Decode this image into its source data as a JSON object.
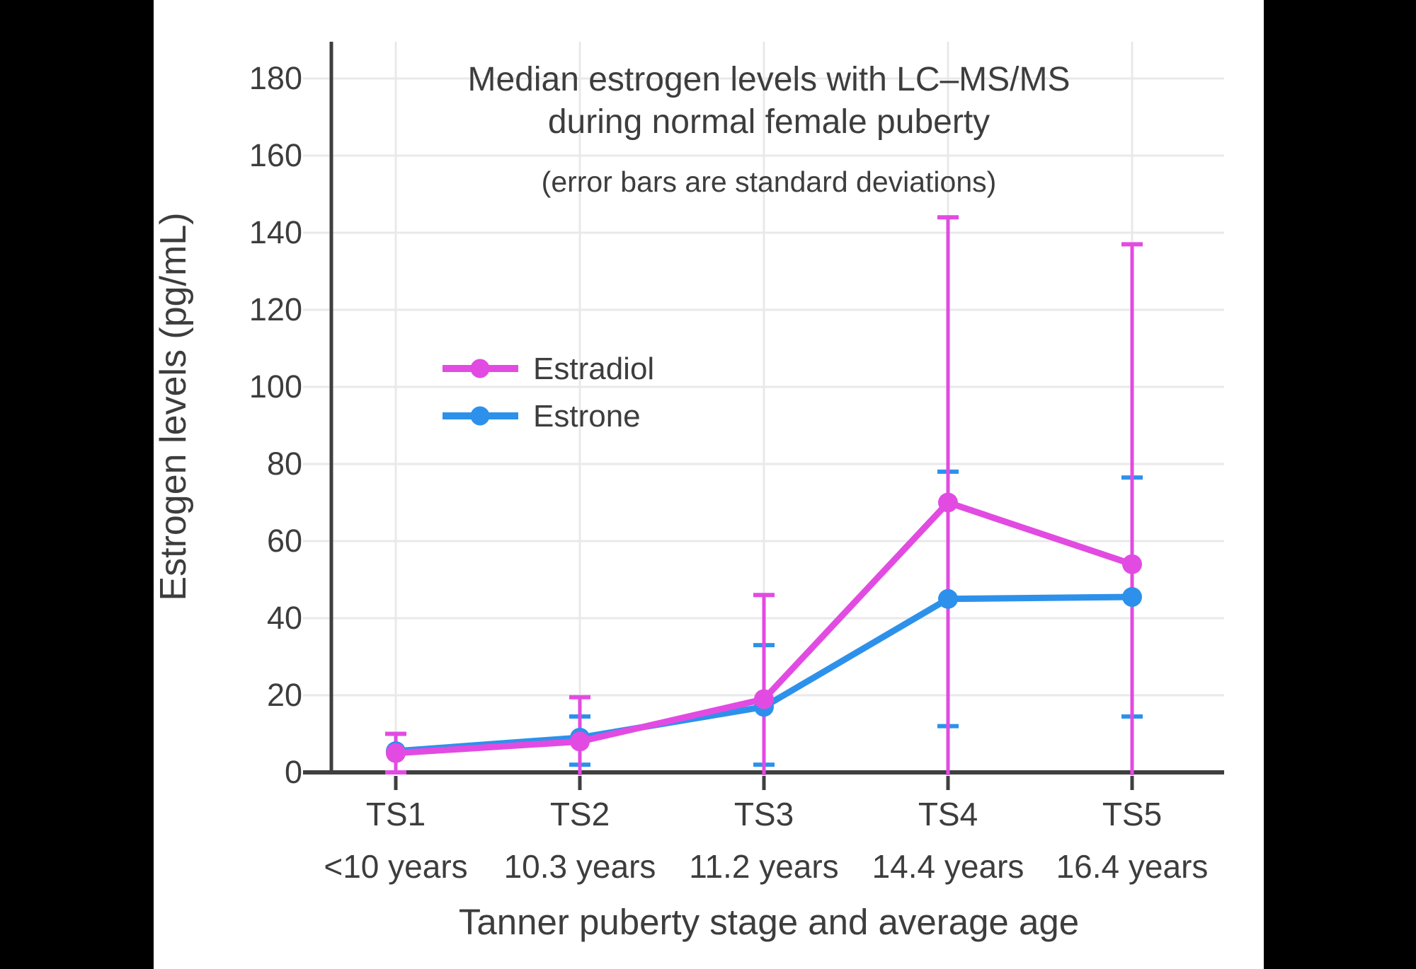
{
  "colors": {
    "background": "#000000",
    "panel": "#ffffff",
    "text": "#3d3d3d",
    "axis": "#3f3f3f",
    "grid": "#e9e9e9",
    "estradiol": "#e24be2",
    "estrone": "#2d91eb"
  },
  "title": {
    "line1": "Median estrogen levels with LC–MS/MS",
    "line2": "during normal female puberty",
    "subtitle": "(error bars are standard deviations)"
  },
  "axes": {
    "y_title": "Estrogen levels (pg/mL)",
    "x_title": "Tanner puberty stage and average age"
  },
  "legend": [
    {
      "label": "Estradiol",
      "color": "#e24be2"
    },
    {
      "label": "Estrone",
      "color": "#2d91eb"
    }
  ],
  "chart_data": {
    "type": "line",
    "title": "Median estrogen levels with LC–MS/MS during normal female puberty",
    "subtitle": "(error bars are standard deviations)",
    "xlabel": "Tanner puberty stage and average age",
    "ylabel": "Estrogen levels (pg/mL)",
    "categories": [
      "TS1",
      "TS2",
      "TS3",
      "TS4",
      "TS5"
    ],
    "category_sublabels": [
      "<10 years",
      "10.3 years",
      "11.2 years",
      "14.4 years",
      "16.4 years"
    ],
    "ylim": [
      0,
      190
    ],
    "ytick_step": 20,
    "ytick_max": 180,
    "grid": true,
    "legend_position": "inside-upper-left",
    "error_bar_meaning": "standard deviation",
    "series": [
      {
        "name": "Estradiol",
        "color": "#e24be2",
        "values": [
          5,
          8,
          19,
          70,
          54
        ],
        "error_top": [
          10,
          19.5,
          46,
          144,
          137
        ],
        "error_bottom": [
          0,
          null,
          null,
          null,
          null
        ]
      },
      {
        "name": "Estrone",
        "color": "#2d91eb",
        "values": [
          5.5,
          9,
          17,
          45,
          45.5
        ],
        "error_top": [
          null,
          14.5,
          33,
          78,
          76.5
        ],
        "error_bottom": [
          null,
          2,
          2,
          12,
          14.5
        ]
      }
    ]
  }
}
